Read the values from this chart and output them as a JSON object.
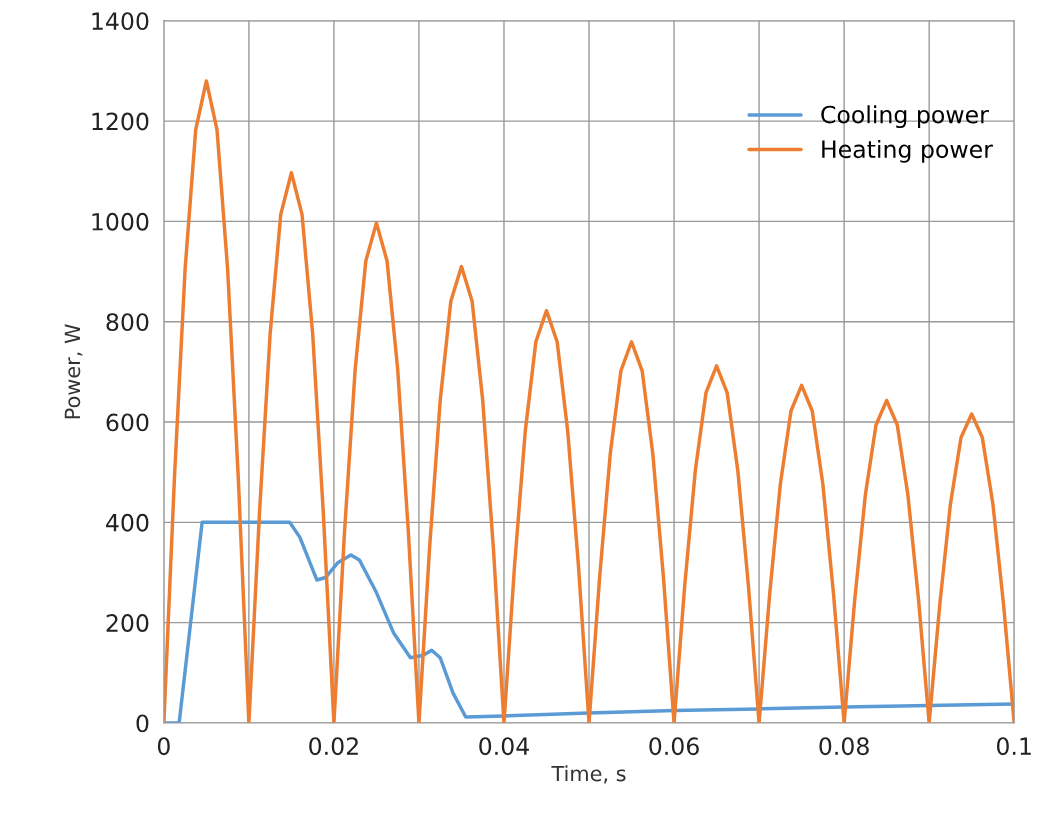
{
  "chart_data": {
    "type": "line",
    "xlabel": "Time, s",
    "ylabel": "Power, W",
    "xlim": [
      0,
      0.1
    ],
    "ylim": [
      0,
      1400
    ],
    "xticks": [
      0,
      {
        "value": 0.01,
        "label": null
      },
      0.02,
      {
        "value": 0.03,
        "label": null
      },
      0.04,
      {
        "value": 0.05,
        "label": null
      },
      0.06,
      {
        "value": 0.07,
        "label": null
      },
      0.08,
      {
        "value": 0.09,
        "label": null
      },
      0.1
    ],
    "yticks": [
      0,
      200,
      400,
      600,
      800,
      1000,
      1200,
      1400
    ],
    "grid": true,
    "legend": "top right",
    "marker": "none",
    "line_style": "solid",
    "series": [
      {
        "name": "Cooling power",
        "color": "#5b9bd5",
        "x": [
          0,
          0.0018,
          0.0045,
          0.0148,
          0.016,
          0.018,
          0.019,
          0.0205,
          0.022,
          0.023,
          0.025,
          0.027,
          0.029,
          0.0305,
          0.0315,
          0.0325,
          0.034,
          0.0355,
          0.04,
          0.05,
          0.06,
          0.07,
          0.08,
          0.09,
          0.1
        ],
        "values": [
          0,
          0,
          400,
          400,
          370,
          285,
          290,
          320,
          335,
          325,
          260,
          180,
          130,
          135,
          145,
          130,
          60,
          12,
          14,
          20,
          25,
          28,
          32,
          35,
          38
        ]
      },
      {
        "name": "Heating power",
        "color": "#ed7d31",
        "x": [
          0,
          0.00125,
          0.0025,
          0.00375,
          0.005,
          0.00625,
          0.0075,
          0.00875,
          0.01,
          0.01125,
          0.0125,
          0.01375,
          0.015,
          0.01625,
          0.0175,
          0.01875,
          0.02,
          0.02125,
          0.0225,
          0.02375,
          0.025,
          0.02625,
          0.0275,
          0.02875,
          0.03,
          0.03125,
          0.0325,
          0.03375,
          0.035,
          0.03625,
          0.0375,
          0.03875,
          0.04,
          0.04125,
          0.0425,
          0.04375,
          0.045,
          0.04625,
          0.0475,
          0.04875,
          0.05,
          0.05125,
          0.0525,
          0.05375,
          0.055,
          0.05625,
          0.0575,
          0.05875,
          0.06,
          0.06125,
          0.0625,
          0.06375,
          0.065,
          0.06625,
          0.0675,
          0.06875,
          0.07,
          0.07125,
          0.0725,
          0.07375,
          0.075,
          0.07625,
          0.0775,
          0.07875,
          0.08,
          0.08125,
          0.0825,
          0.08375,
          0.085,
          0.08625,
          0.0875,
          0.08875,
          0.09,
          0.09125,
          0.0925,
          0.09375,
          0.095,
          0.09625,
          0.0975,
          0.09875,
          0.1
        ],
        "values": [
          0,
          490,
          905,
          1183,
          1280,
          1183,
          905,
          490,
          0,
          420,
          776,
          1014,
          1097,
          1014,
          776,
          420,
          0,
          382,
          705,
          921,
          997,
          921,
          705,
          382,
          0,
          349,
          643,
          841,
          910,
          841,
          643,
          349,
          0,
          315,
          581,
          760,
          822,
          760,
          581,
          315,
          0,
          291,
          537,
          702,
          760,
          702,
          537,
          291,
          0,
          273,
          503,
          658,
          712,
          658,
          503,
          273,
          0,
          258,
          476,
          622,
          673,
          622,
          476,
          258,
          0,
          246,
          455,
          594,
          643,
          594,
          455,
          246,
          0,
          236,
          436,
          569,
          616,
          569,
          436,
          236,
          0
        ]
      }
    ]
  }
}
